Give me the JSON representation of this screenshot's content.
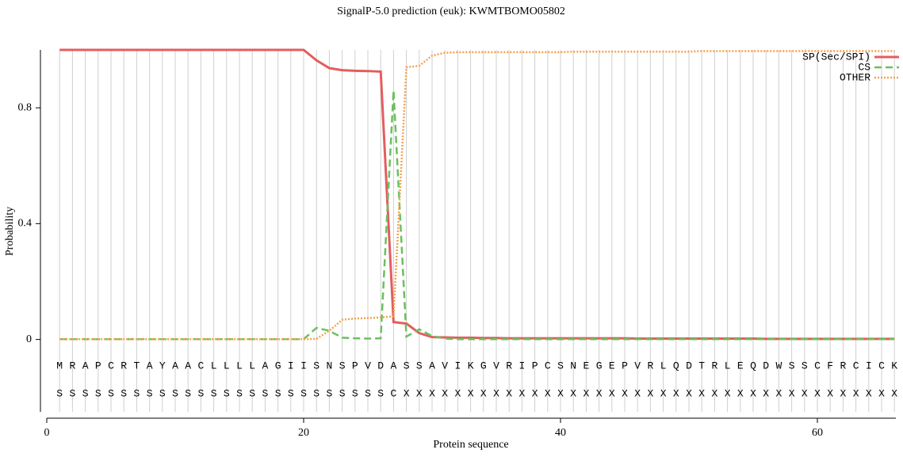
{
  "chart_data": {
    "type": "line",
    "title": "SignalP-5.0 prediction (euk):  KWMTBOMO05802",
    "xlabel": "Protein sequence",
    "ylabel": "Probability",
    "x": [
      1,
      2,
      3,
      4,
      5,
      6,
      7,
      8,
      9,
      10,
      11,
      12,
      13,
      14,
      15,
      16,
      17,
      18,
      19,
      20,
      21,
      22,
      23,
      24,
      25,
      26,
      27,
      28,
      29,
      30,
      31,
      32,
      33,
      34,
      35,
      36,
      37,
      38,
      39,
      40,
      41,
      42,
      43,
      44,
      45,
      46,
      47,
      48,
      49,
      50,
      51,
      52,
      53,
      54,
      55,
      56,
      57,
      58,
      59,
      60,
      61,
      62,
      63,
      64,
      65,
      66
    ],
    "sequence": [
      "M",
      "R",
      "A",
      "P",
      "C",
      "R",
      "T",
      "A",
      "Y",
      "A",
      "A",
      "C",
      "L",
      "L",
      "L",
      "L",
      "A",
      "G",
      "I",
      "I",
      "S",
      "N",
      "S",
      "P",
      "V",
      "D",
      "A",
      "S",
      "S",
      "A",
      "V",
      "I",
      "K",
      "G",
      "V",
      "R",
      "I",
      "P",
      "C",
      "S",
      "N",
      "E",
      "G",
      "E",
      "P",
      "V",
      "R",
      "L",
      "Q",
      "D",
      "T",
      "R",
      "L",
      "E",
      "Q",
      "D",
      "W",
      "S",
      "S",
      "C",
      "F",
      "R",
      "C",
      "I",
      "C",
      "K"
    ],
    "labels": [
      "S",
      "S",
      "S",
      "S",
      "S",
      "S",
      "S",
      "S",
      "S",
      "S",
      "S",
      "S",
      "S",
      "S",
      "S",
      "S",
      "S",
      "S",
      "S",
      "S",
      "S",
      "S",
      "S",
      "S",
      "S",
      "S",
      "C",
      "X",
      "X",
      "X",
      "X",
      "X",
      "X",
      "X",
      "X",
      "X",
      "X",
      "X",
      "X",
      "X",
      "X",
      "X",
      "X",
      "X",
      "X",
      "X",
      "X",
      "X",
      "X",
      "X",
      "X",
      "X",
      "X",
      "X",
      "X",
      "X",
      "X",
      "X",
      "X",
      "X",
      "X",
      "X",
      "X",
      "X",
      "X",
      "X"
    ],
    "series": [
      {
        "name": "SP(Sec/SPI)",
        "color": "#e35d5f",
        "style": "solid",
        "values": [
          1,
          1,
          1,
          1,
          1,
          1,
          1,
          1,
          1,
          1,
          1,
          1,
          1,
          1,
          1,
          1,
          1,
          1,
          1,
          1,
          0.964,
          0.937,
          0.93,
          0.928,
          0.927,
          0.925,
          0.06,
          0.055,
          0.022,
          0.008,
          0.007,
          0.006,
          0.006,
          0.005,
          0.005,
          0.004,
          0.004,
          0.004,
          0.004,
          0.004,
          0.004,
          0.004,
          0.004,
          0.004,
          0.004,
          0.003,
          0.003,
          0.003,
          0.003,
          0.003,
          0.003,
          0.003,
          0.003,
          0.003,
          0.003,
          0.002,
          0.002,
          0.002,
          0.002,
          0.002,
          0.002,
          0.002,
          0.002,
          0.002,
          0.002,
          0.002
        ]
      },
      {
        "name": "CS",
        "color": "#6dbf5f",
        "style": "dashed",
        "values": [
          0.001,
          0.001,
          0.001,
          0.001,
          0.001,
          0.001,
          0.001,
          0.001,
          0.001,
          0.001,
          0.001,
          0.001,
          0.001,
          0.001,
          0.001,
          0.001,
          0.001,
          0.001,
          0.001,
          0.001,
          0.04,
          0.03,
          0.006,
          0.004,
          0.003,
          0.004,
          0.86,
          0.01,
          0.035,
          0.012,
          0.003,
          0.001,
          0.001,
          0.001,
          0.001,
          0.001,
          0.001,
          0.001,
          0.001,
          0.001,
          0.001,
          0.001,
          0.001,
          0.001,
          0.001,
          0.001,
          0.001,
          0.001,
          0.001,
          0.001,
          0.001,
          0.001,
          0.001,
          0.001,
          0.001,
          0.001,
          0.001,
          0.001,
          0.001,
          0.001,
          0.001,
          0.001,
          0.001,
          0.001,
          0.001,
          0.001
        ]
      },
      {
        "name": "OTHER",
        "color": "#f4a24c",
        "style": "dotted",
        "values": [
          0.001,
          0.001,
          0.001,
          0.001,
          0.001,
          0.001,
          0.001,
          0.001,
          0.001,
          0.001,
          0.001,
          0.001,
          0.001,
          0.001,
          0.001,
          0.001,
          0.001,
          0.001,
          0.001,
          0.001,
          0.002,
          0.03,
          0.068,
          0.072,
          0.074,
          0.076,
          0.08,
          0.94,
          0.945,
          0.98,
          0.99,
          0.992,
          0.992,
          0.992,
          0.992,
          0.992,
          0.992,
          0.992,
          0.992,
          0.992,
          0.994,
          0.994,
          0.994,
          0.994,
          0.994,
          0.994,
          0.994,
          0.994,
          0.994,
          0.994,
          0.996,
          0.996,
          0.996,
          0.996,
          0.996,
          0.996,
          0.996,
          0.996,
          0.996,
          0.996,
          0.996,
          0.996,
          0.996,
          0.996,
          0.996,
          0.996
        ]
      }
    ],
    "xlim": [
      0,
      66
    ],
    "ylim": [
      -0.25,
      1
    ],
    "xticks": [
      0,
      20,
      40,
      60
    ],
    "yticks": [
      0,
      0.4,
      0.8
    ],
    "grid": true,
    "legend": "upper right"
  }
}
